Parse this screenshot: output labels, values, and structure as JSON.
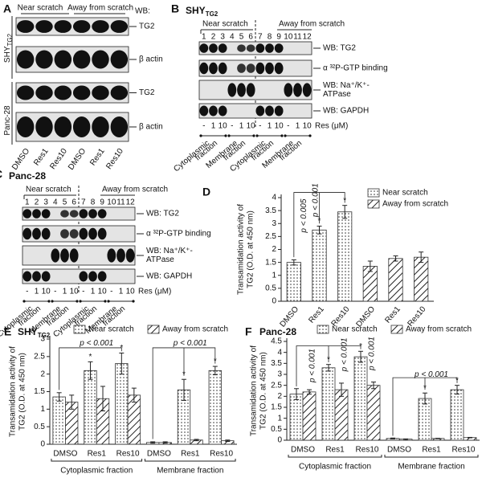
{
  "blot_a": {
    "label": "A",
    "near": "Near scratch",
    "away": "Away from scratch",
    "wb": "WB:",
    "rows": [
      "TG2",
      "β actin",
      "TG2",
      "β actin"
    ],
    "cell_lines": [
      {
        "name": "SHY",
        "sub": "TG2"
      },
      {
        "name": "Panc-28"
      }
    ],
    "lanes": [
      "DMSO",
      "Res1",
      "Res10",
      "DMSO",
      "Res1",
      "Res10"
    ]
  },
  "blot_b": {
    "label": "B",
    "title": "SHY",
    "title_sub": "TG2",
    "near": "Near scratch",
    "away": "Away from scratch",
    "lanes": [
      "1",
      "2",
      "3",
      "4",
      "5",
      "6",
      "7",
      "8",
      "9",
      "10",
      "11",
      "12"
    ],
    "rows": [
      [
        "WB: TG2"
      ],
      [
        "α ³²P-GTP binding"
      ],
      [
        "WB: Na⁺/K⁺-",
        "ATPase"
      ],
      [
        "WB: GAPDH"
      ]
    ],
    "doses": [
      "-",
      "1",
      "10",
      "-",
      "1",
      "10",
      "-",
      "1",
      "10",
      "-",
      "1",
      "10"
    ],
    "dose_unit": "Res (μM)",
    "fractions": [
      [
        "Cytoplasmic",
        "fraction"
      ],
      [
        "Membrane",
        "fraction"
      ],
      [
        "Cytoplasmic",
        "fraction"
      ],
      [
        "Membrane",
        "fraction"
      ]
    ]
  },
  "blot_c": {
    "label": "C",
    "title": "Panc-28",
    "near": "Near scratch",
    "away": "Away from scratch",
    "lanes": [
      "1",
      "2",
      "3",
      "4",
      "5",
      "6",
      "7",
      "8",
      "9",
      "10",
      "11",
      "12"
    ],
    "rows": [
      [
        "WB: TG2"
      ],
      [
        "α ³²P-GTP binding"
      ],
      [
        "WB: Na⁺/K⁺-",
        "ATPase"
      ],
      [
        "WB: GAPDH"
      ]
    ],
    "doses": [
      "-",
      "1",
      "10",
      "-",
      "1",
      "10",
      "-",
      "1",
      "10",
      "-",
      "1",
      "10"
    ],
    "dose_unit": "Res (μM)",
    "fractions": [
      [
        "Cytoplasmic",
        "fraction"
      ],
      [
        "Membrane",
        "fraction"
      ],
      [
        "Cytoplasmic",
        "fraction"
      ],
      [
        "Membrane",
        "fraction"
      ]
    ]
  },
  "chart_data": [
    {
      "type": "bar",
      "label": "D",
      "ylabel": [
        "Transamidation activity of",
        "TG2 (O.D. at 450 nm)"
      ],
      "categories": [
        "DMSO",
        "Res1",
        "Res10",
        "DMSO",
        "Res1",
        "Res10"
      ],
      "series": [
        {
          "name": "Near scratch",
          "color": "#333333",
          "pattern": "dots",
          "values": [
            1.5,
            2.75,
            3.45,
            null,
            null,
            null
          ],
          "errors": [
            0.1,
            0.15,
            0.25,
            null,
            null,
            null
          ],
          "markers": [
            null,
            "*",
            "*",
            null,
            null,
            null
          ]
        },
        {
          "name": "Away from scratch",
          "color": "#333333",
          "pattern": "hatch",
          "values": [
            null,
            null,
            null,
            1.35,
            1.65,
            1.7
          ],
          "errors": [
            null,
            null,
            null,
            0.2,
            0.1,
            0.2
          ]
        }
      ],
      "ylim": [
        0,
        4
      ],
      "yticks": [
        0,
        0.5,
        1,
        1.5,
        2,
        2.5,
        3,
        3.5,
        4
      ],
      "annotations": [
        "p < 0.005",
        "p < 0.001"
      ]
    },
    {
      "type": "bar",
      "label": "E",
      "title": "SHY",
      "title_sub": "TG2",
      "ylabel": [
        "Transamidation activity of",
        "TG2 (O.D. at 450 nm)"
      ],
      "categories": [
        "DMSO",
        "Res1",
        "Res10",
        "DMSO",
        "Res1",
        "Res10"
      ],
      "groups": [
        "Cytoplasmic fraction",
        "Membrane fraction"
      ],
      "series": [
        {
          "name": "Near scratch",
          "color": "#333333",
          "pattern": "dots",
          "values": [
            1.35,
            2.1,
            2.3,
            0.05,
            1.55,
            2.1
          ],
          "errors": [
            0.12,
            0.25,
            0.3,
            0.02,
            0.3,
            0.12
          ],
          "markers": [
            null,
            "*",
            "*",
            null,
            "*",
            "*"
          ]
        },
        {
          "name": "Away from scratch",
          "color": "#333333",
          "pattern": "hatch",
          "values": [
            1.2,
            1.3,
            1.4,
            0.05,
            0.12,
            0.1
          ],
          "errors": [
            0.2,
            0.35,
            0.2,
            0.02,
            0.02,
            0.02
          ]
        }
      ],
      "ylim": [
        0,
        3
      ],
      "yticks": [
        0,
        0.5,
        1,
        1.5,
        2,
        2.5,
        3
      ],
      "annotations": [
        "p < 0.001",
        "p < 0.001"
      ]
    },
    {
      "type": "bar",
      "label": "F",
      "title": "Panc-28",
      "ylabel": [
        "Transamidation activity of",
        "TG2 (O.D. at 450 nm)"
      ],
      "categories": [
        "DMSO",
        "Res1",
        "Res10",
        "DMSO",
        "Res1",
        "Res10"
      ],
      "groups": [
        "Cytoplasmic fraction",
        "Membrane fraction"
      ],
      "series": [
        {
          "name": "Near scratch",
          "color": "#333333",
          "pattern": "dots",
          "values": [
            2.1,
            3.3,
            3.8,
            0.08,
            1.9,
            2.3
          ],
          "errors": [
            0.25,
            0.15,
            0.25,
            0.02,
            0.25,
            0.2
          ],
          "markers": [
            null,
            "*",
            "*",
            null,
            "*",
            "*"
          ]
        },
        {
          "name": "Away from scratch",
          "color": "#333333",
          "pattern": "hatch",
          "values": [
            2.2,
            2.3,
            2.5,
            0.05,
            0.08,
            0.12
          ],
          "errors": [
            0.1,
            0.3,
            0.15,
            0.01,
            0.01,
            0.01
          ]
        }
      ],
      "ylim": [
        0,
        4.5
      ],
      "yticks": [
        0,
        0.5,
        1,
        1.5,
        2,
        2.5,
        3,
        3.5,
        4,
        4.5
      ],
      "annotations": [
        "p < 0.001",
        "p < 0.001",
        "p < 0.001",
        "p < 0.001"
      ]
    }
  ]
}
